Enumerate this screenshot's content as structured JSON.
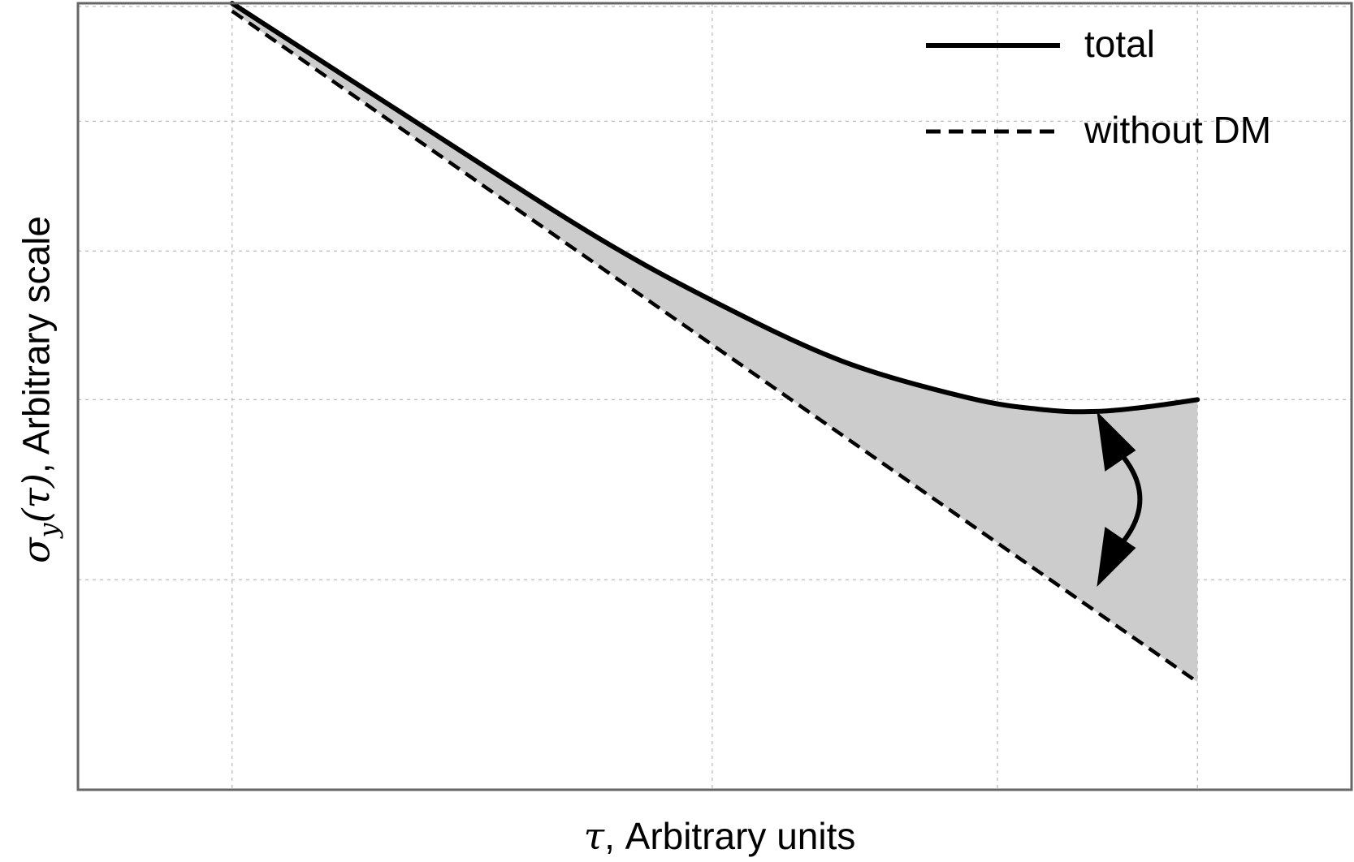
{
  "chart_data": {
    "type": "line",
    "xlabel_symbol": "τ",
    "xlabel_text": ", Arbitrary units",
    "ylabel_symbol": "σ",
    "ylabel_subscript": "y",
    "ylabel_arg": "(τ)",
    "ylabel_text": ", Arbitrary scale",
    "xlim": [
      0,
      1
    ],
    "ylim": [
      0,
      1
    ],
    "grid": true,
    "legend_position": "top-right",
    "fill_between_series": true,
    "fill_color": "#cccccc",
    "x_grid": [
      0.121,
      0.498,
      0.722,
      0.879
    ],
    "y_grid": [
      0.267,
      0.496,
      0.685,
      0.85,
      0.996
    ],
    "series": [
      {
        "name": "total",
        "style": "solid",
        "color": "#000000",
        "x": [
          0.121,
          0.25,
          0.4,
          0.498,
          0.6,
          0.7,
          0.76,
          0.8,
          0.84,
          0.879
        ],
        "y": [
          1.0,
          0.865,
          0.71,
          0.622,
          0.545,
          0.498,
          0.483,
          0.481,
          0.487,
          0.496
        ]
      },
      {
        "name": "without DM",
        "style": "dashed",
        "color": "#000000",
        "x": [
          0.121,
          0.879
        ],
        "y": [
          0.99,
          0.137
        ]
      }
    ],
    "annotations": [
      {
        "type": "double-arrow",
        "x": 0.8,
        "y_from": 0.481,
        "y_to": 0.258
      }
    ]
  }
}
